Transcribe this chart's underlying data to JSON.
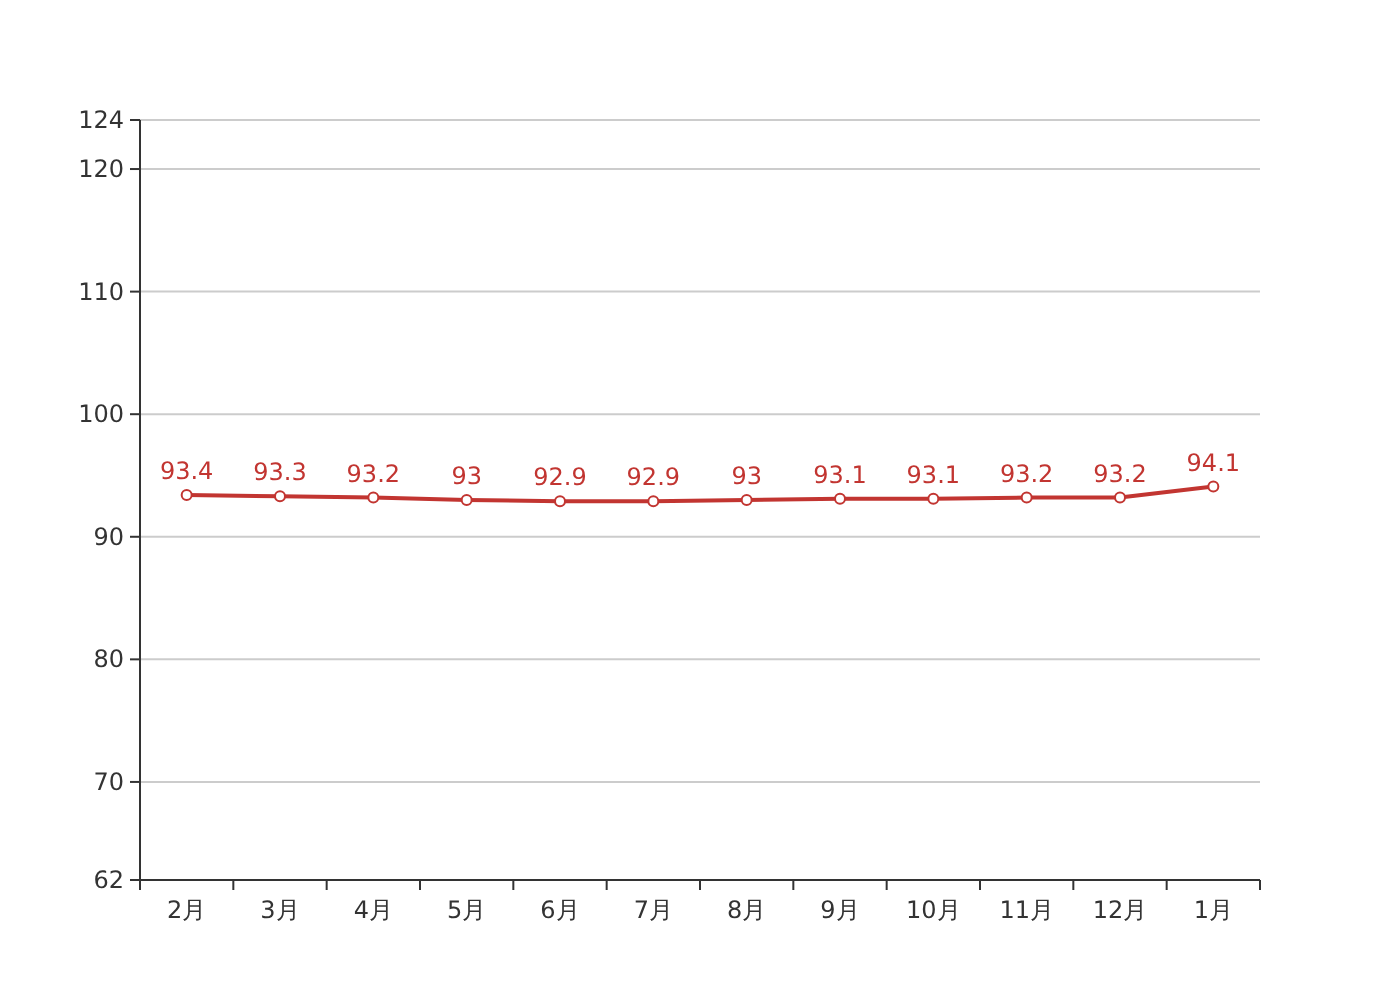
{
  "chart_data": {
    "type": "line",
    "categories": [
      "2月",
      "3月",
      "4月",
      "5月",
      "6月",
      "7月",
      "8月",
      "9月",
      "10月",
      "11月",
      "12月",
      "1月"
    ],
    "values": [
      93.4,
      93.3,
      93.2,
      93,
      92.9,
      92.9,
      93,
      93.1,
      93.1,
      93.2,
      93.2,
      94.1
    ],
    "color": "#c23531",
    "ylim": [
      62,
      124
    ],
    "yticks": [
      62,
      70,
      80,
      90,
      100,
      110,
      120,
      124
    ],
    "grid": "y",
    "marker": "circle",
    "data_labels": true
  }
}
